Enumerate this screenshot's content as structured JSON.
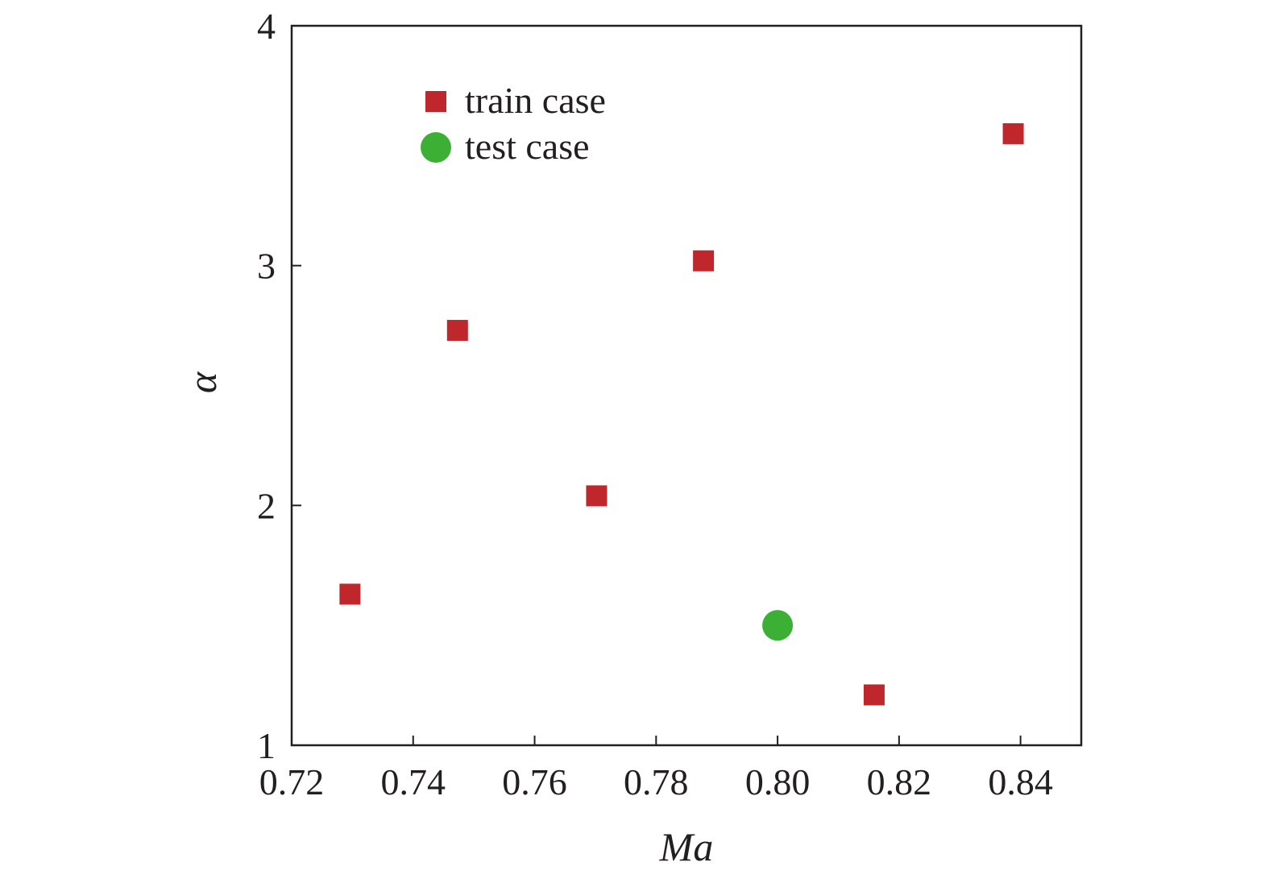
{
  "chart_data": {
    "type": "scatter",
    "xlabel": "Ma",
    "ylabel": "α",
    "xlim": [
      0.72,
      0.85
    ],
    "ylim": [
      1,
      4
    ],
    "x_ticks": [
      "0.72",
      "0.74",
      "0.76",
      "0.78",
      "0.80",
      "0.82",
      "0.84"
    ],
    "y_ticks": [
      "1",
      "2",
      "3",
      "4"
    ],
    "grid": false,
    "legend_position": "top-left",
    "series": [
      {
        "name": "train case",
        "marker": "square",
        "color": "#c0272d",
        "points": [
          {
            "x": 0.7296,
            "y": 1.63
          },
          {
            "x": 0.7473,
            "y": 2.73
          },
          {
            "x": 0.7702,
            "y": 2.04
          },
          {
            "x": 0.7878,
            "y": 3.02
          },
          {
            "x": 0.8159,
            "y": 1.21
          },
          {
            "x": 0.8388,
            "y": 3.55
          }
        ]
      },
      {
        "name": "test case",
        "marker": "circle",
        "color": "#3cb035",
        "points": [
          {
            "x": 0.8,
            "y": 1.5
          }
        ]
      }
    ]
  }
}
